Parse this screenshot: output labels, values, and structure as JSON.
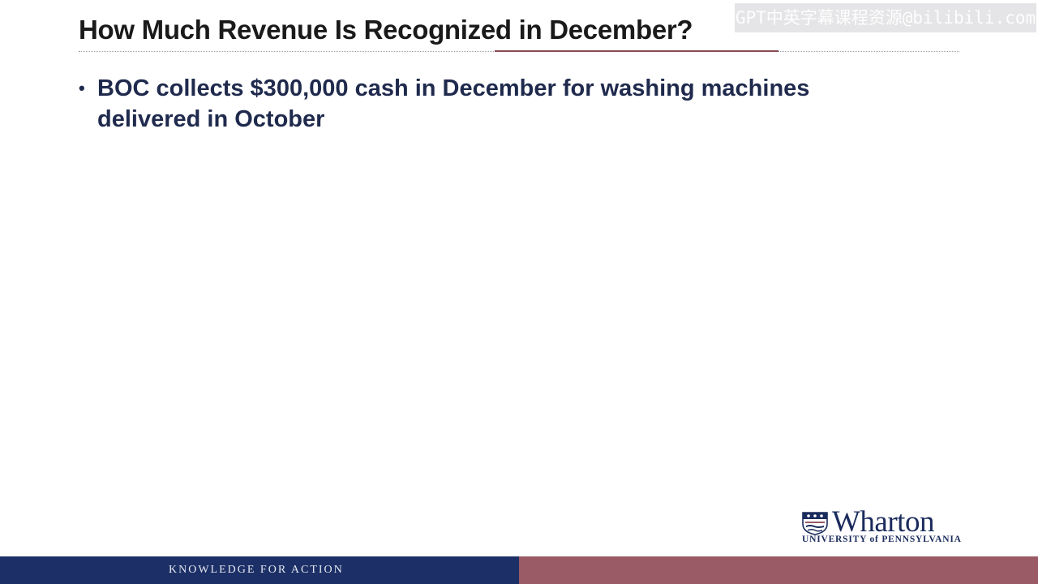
{
  "slide": {
    "title": "How Much Revenue Is Recognized in December?",
    "bullets": [
      "BOC collects $300,000 cash in December for washing machines delivered in October"
    ]
  },
  "watermark": {
    "text": "GPT中英字幕课程资源@bilibili.com"
  },
  "logo": {
    "name": "Wharton",
    "subtitle": "UNIVERSITY of PENNSYLVANIA",
    "icon": "penn-shield-icon"
  },
  "footer": {
    "tagline": "KNOWLEDGE FOR ACTION",
    "colors": {
      "left": "#1c2f66",
      "right": "#9a5a66"
    }
  }
}
